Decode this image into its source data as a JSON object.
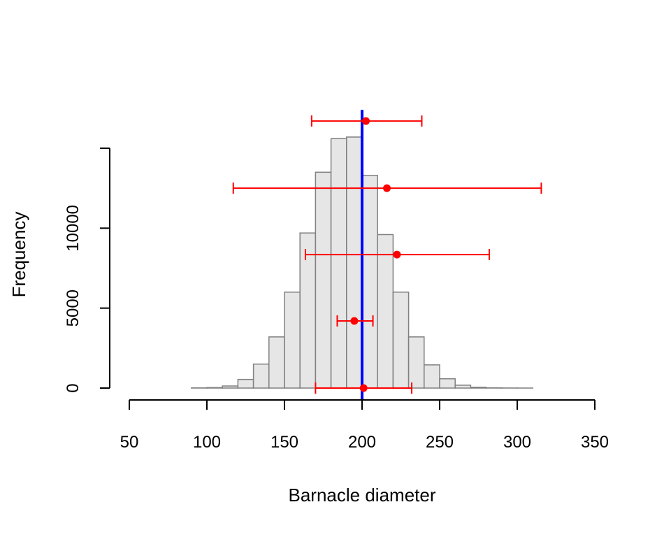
{
  "chart_data": {
    "type": "histogram",
    "xlabel": "Barnacle diameter",
    "ylabel": "Frequency",
    "xlim": [
      50,
      350
    ],
    "ylim": [
      0,
      15000
    ],
    "x_ticks": [
      50,
      100,
      150,
      200,
      250,
      300,
      350
    ],
    "y_ticks": [
      0,
      5000,
      10000
    ],
    "y_tick_labels": [
      "0",
      "5000",
      "10000"
    ],
    "y_tick_extra": [
      15000
    ],
    "bins": {
      "edges": [
        90,
        100,
        110,
        120,
        130,
        140,
        150,
        160,
        170,
        180,
        190,
        200,
        210,
        220,
        230,
        240,
        250,
        260,
        270,
        280,
        290,
        300,
        310
      ],
      "counts": [
        10,
        30,
        130,
        540,
        1500,
        3200,
        6000,
        9700,
        13500,
        15600,
        15700,
        13300,
        9600,
        6000,
        3200,
        1450,
        580,
        180,
        50,
        15,
        5,
        2
      ]
    },
    "histogram_fill": "#e6e6e6",
    "histogram_stroke": "#808080",
    "reference_line": {
      "x": 200,
      "color": "#0000ff"
    },
    "intervals": {
      "color": "#ff0000",
      "items": [
        {
          "y": 0,
          "center": 201,
          "lower": 170,
          "upper": 232
        },
        {
          "y": 4200,
          "center": 195,
          "lower": 184,
          "upper": 207
        },
        {
          "y": 8350,
          "center": 222.5,
          "lower": 163.5,
          "upper": 282
        },
        {
          "y": 12500,
          "center": 216,
          "lower": 117,
          "upper": 315.5
        },
        {
          "y": 16700,
          "center": 202.5,
          "lower": 167.5,
          "upper": 238.5
        }
      ]
    }
  }
}
